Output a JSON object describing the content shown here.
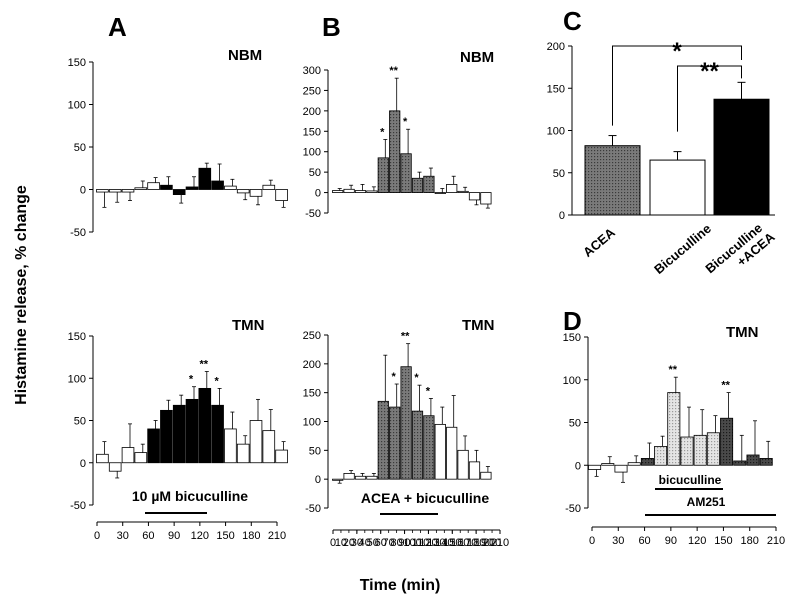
{
  "ylabel": "Histamine release, % change",
  "xlabel": "Time (min)",
  "chart_data": [
    {
      "id": "A-top",
      "type": "bar",
      "letter": "A",
      "region": "NBM",
      "ylim": [
        -50,
        150
      ],
      "yticks": [
        -50,
        0,
        50,
        100,
        150
      ],
      "values": [
        -3,
        -3,
        -3,
        2,
        8,
        5,
        -6,
        3,
        25,
        10,
        4,
        -4,
        -8,
        5,
        -13
      ],
      "errors": [
        18,
        12,
        10,
        8,
        6,
        10,
        10,
        12,
        6,
        20,
        8,
        8,
        10,
        6,
        8
      ],
      "styles": [
        "w",
        "w",
        "w",
        "w",
        "w",
        "k",
        "k",
        "k",
        "k",
        "k",
        "w",
        "w",
        "w",
        "w",
        "w"
      ],
      "stars": []
    },
    {
      "id": "B-top",
      "type": "bar",
      "letter": "B",
      "region": "NBM",
      "ylim": [
        -50,
        300
      ],
      "yticks": [
        -50,
        0,
        50,
        100,
        150,
        200,
        250,
        300
      ],
      "values": [
        5,
        8,
        5,
        4,
        85,
        200,
        95,
        35,
        40,
        0,
        20,
        3,
        -18,
        -28
      ],
      "errors": [
        5,
        10,
        15,
        10,
        45,
        80,
        60,
        15,
        20,
        10,
        20,
        10,
        12,
        10
      ],
      "styles": [
        "w",
        "w",
        "w",
        "w",
        "g",
        "g",
        "g",
        "g",
        "g",
        "w",
        "w",
        "w",
        "w",
        "w"
      ],
      "stars": [
        {
          "index": 4,
          "text": "*"
        },
        {
          "index": 5,
          "text": "**"
        },
        {
          "index": 6,
          "text": "*"
        }
      ]
    },
    {
      "id": "A-bottom",
      "type": "bar",
      "region": "TMN",
      "ylim": [
        -50,
        150
      ],
      "yticks": [
        -50,
        0,
        50,
        100,
        150
      ],
      "values": [
        10,
        -10,
        18,
        12,
        40,
        62,
        68,
        75,
        88,
        68,
        40,
        22,
        50,
        38,
        15
      ],
      "errors": [
        15,
        8,
        28,
        10,
        10,
        12,
        12,
        15,
        20,
        20,
        20,
        10,
        25,
        25,
        10
      ],
      "styles": [
        "w",
        "w",
        "w",
        "w",
        "k",
        "k",
        "k",
        "k",
        "k",
        "k",
        "w",
        "w",
        "w",
        "w",
        "w"
      ],
      "stars": [
        {
          "index": 7,
          "text": "*"
        },
        {
          "index": 8,
          "text": "**"
        },
        {
          "index": 9,
          "text": "*"
        }
      ],
      "xticks": [
        "0",
        "30",
        "60",
        "90",
        "120",
        "150",
        "180",
        "210"
      ],
      "treatment_label": "10 µM bicuculline",
      "treatment_range": [
        4,
        9
      ]
    },
    {
      "id": "B-bottom",
      "type": "bar",
      "region": "TMN",
      "ylim": [
        -50,
        250
      ],
      "yticks": [
        -50,
        0,
        50,
        100,
        150,
        200,
        250
      ],
      "values": [
        -2,
        10,
        5,
        5,
        135,
        125,
        195,
        118,
        110,
        95,
        90,
        50,
        30,
        12
      ],
      "errors": [
        5,
        5,
        5,
        5,
        80,
        40,
        40,
        45,
        30,
        30,
        55,
        25,
        20,
        10
      ],
      "styles": [
        "w",
        "w",
        "w",
        "w",
        "g",
        "g",
        "g",
        "g",
        "g",
        "w",
        "w",
        "w",
        "w",
        "w"
      ],
      "stars": [
        {
          "index": 5,
          "text": "*"
        },
        {
          "index": 6,
          "text": "**"
        },
        {
          "index": 7,
          "text": "*"
        },
        {
          "index": 8,
          "text": "*"
        }
      ],
      "xticks": [
        "0",
        "30",
        "60",
        "90",
        "120",
        "150",
        "180",
        "210"
      ],
      "xticks_minor": [
        "10",
        "20",
        "40",
        "50",
        "70",
        "80",
        "100",
        "110",
        "130",
        "140",
        "160",
        "170",
        "190",
        "200"
      ],
      "treatment_label": "ACEA + bicuculline",
      "treatment_range": [
        4,
        8
      ]
    },
    {
      "id": "C",
      "type": "bar",
      "letter": "C",
      "ylim": [
        0,
        200
      ],
      "yticks": [
        0,
        50,
        100,
        150,
        200
      ],
      "categories": [
        "ACEA",
        "Bicuculline",
        "Bicuculline\n+ACEA"
      ],
      "values": [
        82,
        65,
        137
      ],
      "errors": [
        12,
        10,
        20
      ],
      "styles": [
        "g",
        "w",
        "k"
      ],
      "significance": [
        {
          "from": 0,
          "to": 2,
          "text": "*"
        },
        {
          "from": 1,
          "to": 2,
          "text": "**"
        }
      ]
    },
    {
      "id": "D",
      "type": "bar",
      "letter": "D",
      "region": "TMN",
      "ylim": [
        -50,
        150
      ],
      "yticks": [
        -50,
        0,
        50,
        100,
        150
      ],
      "values": [
        -5,
        2,
        -8,
        3,
        8,
        22,
        85,
        33,
        35,
        38,
        55,
        5,
        12,
        8
      ],
      "errors": [
        8,
        8,
        12,
        8,
        18,
        12,
        18,
        35,
        30,
        20,
        30,
        30,
        40,
        20
      ],
      "styles": [
        "w",
        "w",
        "w",
        "w",
        "d",
        "l",
        "l",
        "l",
        "l",
        "l",
        "d",
        "d",
        "d",
        "d"
      ],
      "stars": [
        {
          "index": 6,
          "text": "**"
        },
        {
          "index": 10,
          "text": "**"
        }
      ],
      "xticks": [
        "0",
        "30",
        "60",
        "90",
        "120",
        "150",
        "180",
        "210"
      ],
      "treatment_label": "bicuculline",
      "treatment_range": [
        5,
        9
      ],
      "treatment2_label": "AM251",
      "treatment2_range": [
        4,
        13
      ]
    }
  ]
}
